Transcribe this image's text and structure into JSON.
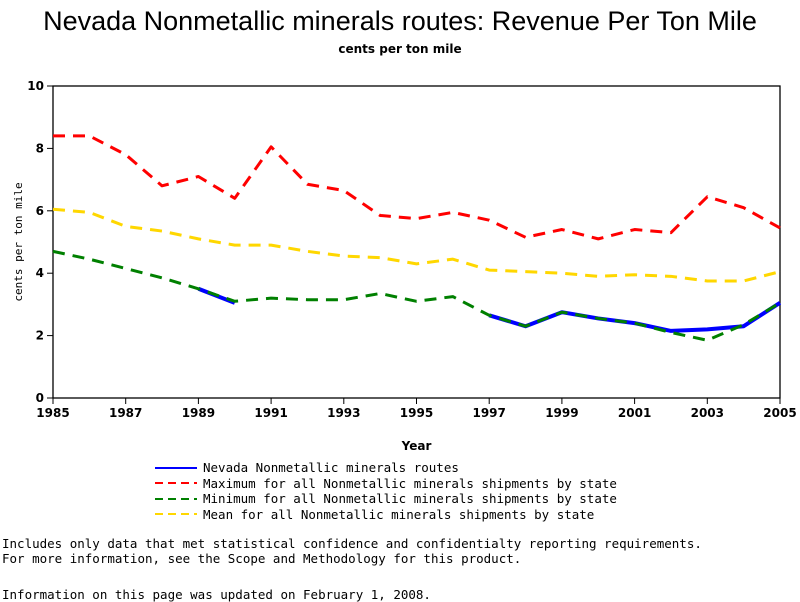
{
  "chart_data": {
    "type": "line",
    "title": "Nevada Nonmetallic minerals routes: Revenue Per Ton Mile",
    "subtitle": "cents per ton mile",
    "xlabel": "Year",
    "ylabel": "cents per ton mile",
    "xlim": [
      1985,
      2005
    ],
    "ylim": [
      0,
      10
    ],
    "x_ticks": [
      "1985",
      "1987",
      "1989",
      "1991",
      "1993",
      "1995",
      "1997",
      "1999",
      "2001",
      "2003",
      "2005"
    ],
    "y_ticks": [
      "0",
      "2",
      "4",
      "6",
      "8",
      "10"
    ],
    "grid": false,
    "legend_position": "bottom",
    "x": [
      1985,
      1986,
      1987,
      1988,
      1989,
      1990,
      1991,
      1992,
      1993,
      1994,
      1995,
      1996,
      1997,
      1998,
      1999,
      2000,
      2001,
      2002,
      2003,
      2004,
      2005
    ],
    "series": [
      {
        "name": "Nevada Nonmetallic minerals routes",
        "color": "#0000ff",
        "style": "solid",
        "values": [
          null,
          null,
          null,
          null,
          3.5,
          3.05,
          null,
          null,
          null,
          null,
          null,
          null,
          2.65,
          2.3,
          2.75,
          2.55,
          2.4,
          2.15,
          2.2,
          2.3,
          3.05
        ]
      },
      {
        "name": "Maximum for all Nonmetallic minerals shipments by state",
        "color": "#ff0000",
        "style": "dashed",
        "values": [
          8.4,
          8.4,
          7.8,
          6.8,
          7.1,
          6.4,
          8.05,
          6.85,
          6.65,
          5.85,
          5.75,
          5.95,
          5.7,
          5.15,
          5.4,
          5.1,
          5.4,
          5.3,
          6.45,
          6.1,
          5.45
        ]
      },
      {
        "name": "Minimum for all Nonmetallic minerals shipments by state",
        "color": "#008000",
        "style": "dashed",
        "values": [
          4.7,
          4.45,
          4.15,
          3.85,
          3.5,
          3.1,
          3.2,
          3.15,
          3.15,
          3.35,
          3.1,
          3.25,
          2.65,
          2.3,
          2.75,
          2.55,
          2.4,
          2.1,
          1.85,
          2.35,
          3.05
        ]
      },
      {
        "name": "Mean for all Nonmetallic minerals shipments by state",
        "color": "#ffd700",
        "style": "dashed",
        "values": [
          6.05,
          5.95,
          5.5,
          5.35,
          5.1,
          4.9,
          4.9,
          4.7,
          4.55,
          4.5,
          4.3,
          4.45,
          4.1,
          4.05,
          4.0,
          3.9,
          3.95,
          3.9,
          3.75,
          3.75,
          4.05
        ]
      }
    ]
  },
  "notes": {
    "line1": "Includes only data that met statistical confidence and confidentialty reporting requirements.",
    "line2": "For more information, see the Scope and Methodology for this product.",
    "updated": "Information on this page was updated on February 1, 2008."
  }
}
